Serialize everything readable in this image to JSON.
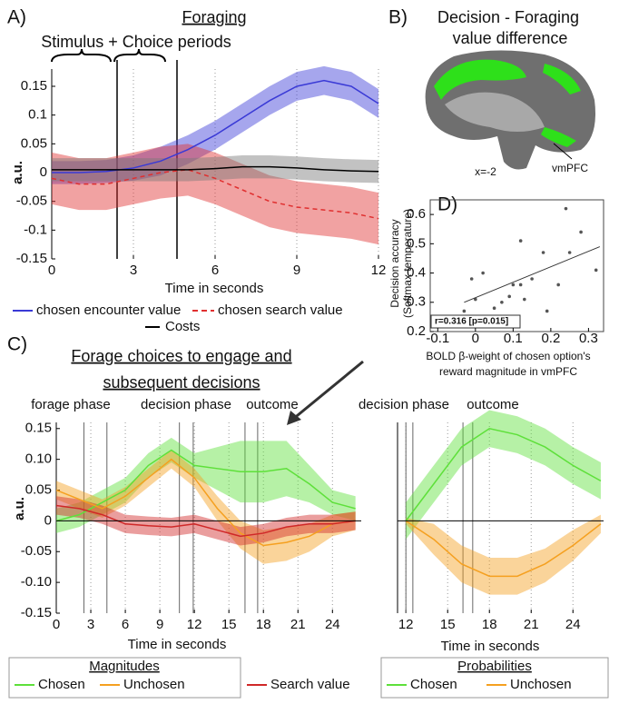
{
  "chart_data": [
    {
      "type": "line",
      "label": "A)",
      "title": "Foraging",
      "annotation": "Stimulus + Choice periods",
      "xlabel": "Time in seconds",
      "ylabel": "a.u.",
      "xlim": [
        0,
        12.5
      ],
      "ylim": [
        -0.15,
        0.18
      ],
      "xticks": [
        0,
        3,
        6,
        9,
        12
      ],
      "yticks": [
        0.15,
        0.1,
        0.05,
        0,
        -0.05,
        -0.1,
        -0.15
      ],
      "grid": "x",
      "vlines": [
        2.4,
        4.6
      ],
      "x": [
        0,
        1,
        2,
        3,
        4,
        5,
        6,
        7,
        8,
        9,
        10,
        11,
        12
      ],
      "series": [
        {
          "name": "chosen encounter value",
          "color": "#3a3ad6",
          "style": "solid",
          "values": [
            0,
            0,
            0.002,
            0.008,
            0.02,
            0.04,
            0.065,
            0.095,
            0.125,
            0.15,
            0.16,
            0.15,
            0.12
          ],
          "upper": [
            0.02,
            0.02,
            0.022,
            0.03,
            0.045,
            0.065,
            0.09,
            0.12,
            0.15,
            0.175,
            0.185,
            0.175,
            0.145
          ],
          "lower": [
            -0.02,
            -0.02,
            -0.018,
            -0.014,
            -0.005,
            0.015,
            0.04,
            0.07,
            0.1,
            0.125,
            0.135,
            0.125,
            0.095
          ]
        },
        {
          "name": "chosen search value",
          "color": "#e03030",
          "style": "dashed",
          "values": [
            -0.01,
            -0.02,
            -0.02,
            -0.01,
            0,
            0.005,
            -0.01,
            -0.03,
            -0.05,
            -0.06,
            -0.065,
            -0.07,
            -0.08
          ],
          "upper": [
            0.035,
            0.025,
            0.025,
            0.035,
            0.045,
            0.05,
            0.035,
            0.015,
            -0.005,
            -0.015,
            -0.02,
            -0.025,
            -0.035
          ],
          "lower": [
            -0.055,
            -0.065,
            -0.065,
            -0.055,
            -0.045,
            -0.04,
            -0.055,
            -0.075,
            -0.095,
            -0.105,
            -0.11,
            -0.115,
            -0.125
          ]
        },
        {
          "name": "Costs",
          "color": "#000000",
          "style": "solid",
          "values": [
            0.005,
            0.005,
            0.005,
            0.005,
            0.005,
            0.005,
            0.007,
            0.01,
            0.01,
            0.008,
            0.005,
            0.003,
            0.002
          ],
          "upper": [
            0.025,
            0.025,
            0.025,
            0.025,
            0.025,
            0.025,
            0.027,
            0.03,
            0.03,
            0.028,
            0.025,
            0.023,
            0.022
          ],
          "lower": [
            -0.015,
            -0.015,
            -0.015,
            -0.015,
            -0.015,
            -0.015,
            -0.013,
            -0.01,
            -0.01,
            -0.012,
            -0.015,
            -0.017,
            -0.018
          ]
        }
      ]
    },
    {
      "type": "scatter",
      "label": "D)",
      "xlabel": [
        "BOLD β-weight of chosen option's",
        "reward magnitude in vmPFC"
      ],
      "ylabel": [
        "Decision accuracy",
        "(Softmax temperature)"
      ],
      "annotation": "r=0.316  [p=0.015]",
      "xlim": [
        -0.12,
        0.34
      ],
      "ylim": [
        0.2,
        0.65
      ],
      "xticks": [
        -0.1,
        0,
        0.1,
        0.2,
        0.3
      ],
      "yticks": [
        0.6,
        0.5,
        0.4,
        0.3,
        0.2
      ],
      "color": "#555555",
      "x": [
        -0.03,
        -0.01,
        0,
        0.02,
        0.05,
        0.07,
        0.09,
        0.1,
        0.12,
        0.13,
        0.12,
        0.15,
        0.18,
        0.19,
        0.22,
        0.24,
        0.25,
        0.28,
        0.32
      ],
      "values": [
        0.27,
        0.38,
        0.31,
        0.4,
        0.28,
        0.3,
        0.32,
        0.36,
        0.36,
        0.31,
        0.51,
        0.38,
        0.47,
        0.27,
        0.36,
        0.62,
        0.47,
        0.54,
        0.41
      ],
      "fit": {
        "x": [
          -0.03,
          0.33
        ],
        "y": [
          0.3,
          0.49
        ]
      }
    },
    {
      "type": "line",
      "label": "C)",
      "title": [
        "Forage choices to engage and",
        "subsequent decisions"
      ],
      "annotations": [
        "forage phase",
        "decision phase",
        "outcome"
      ],
      "xlabel": "Time in seconds",
      "ylabel": "a.u.",
      "legend_title": "Magnitudes",
      "xlim": [
        0,
        26.5
      ],
      "ylim": [
        -0.15,
        0.16
      ],
      "xticks": [
        0,
        3,
        6,
        9,
        12,
        15,
        18,
        21,
        24
      ],
      "yticks": [
        0.15,
        {
          "value": 0.1,
          "label": "0.10"
        },
        0.05,
        0,
        -0.05,
        {
          "value": -0.1,
          "label": "-0.10"
        },
        -0.15
      ],
      "grid": "x",
      "zero_line": true,
      "vlines": [
        2.4,
        4.4,
        10.7,
        11.9,
        16.4,
        17.5
      ],
      "x": [
        0,
        2,
        4,
        6,
        8,
        10,
        12,
        14,
        16,
        18,
        20,
        22,
        24,
        26
      ],
      "series": [
        {
          "name": "Chosen",
          "color": "#5ee03a",
          "style": "solid",
          "values": [
            0,
            0.01,
            0.03,
            0.05,
            0.09,
            0.115,
            0.09,
            0.085,
            0.08,
            0.08,
            0.085,
            0.06,
            0.03,
            0.02
          ],
          "upper": [
            0.02,
            0.03,
            0.05,
            0.07,
            0.11,
            0.135,
            0.11,
            0.12,
            0.13,
            0.13,
            0.13,
            0.09,
            0.05,
            0.04
          ],
          "lower": [
            -0.02,
            -0.01,
            0.01,
            0.03,
            0.07,
            0.095,
            0.07,
            0.05,
            0.03,
            0.03,
            0.04,
            0.03,
            0.01,
            0
          ]
        },
        {
          "name": "Unchosen",
          "color": "#f5a020",
          "style": "solid",
          "values": [
            0.05,
            0.035,
            0.02,
            0.04,
            0.07,
            0.1,
            0.07,
            0.02,
            -0.02,
            -0.04,
            -0.035,
            -0.025,
            -0.005,
            0
          ],
          "upper": [
            0.065,
            0.05,
            0.035,
            0.055,
            0.085,
            0.115,
            0.085,
            0.04,
            0,
            -0.015,
            -0.01,
            -0.005,
            0.01,
            0.015
          ],
          "lower": [
            0.035,
            0.02,
            0.005,
            0.025,
            0.055,
            0.085,
            0.055,
            0,
            -0.045,
            -0.07,
            -0.065,
            -0.05,
            -0.025,
            -0.015
          ]
        },
        {
          "name": "Search value",
          "color": "#d02828",
          "style": "solid",
          "values": [
            0.025,
            0.02,
            0.01,
            -0.005,
            -0.008,
            -0.01,
            -0.005,
            -0.015,
            -0.025,
            -0.02,
            -0.01,
            -0.005,
            -0.005,
            0
          ],
          "upper": [
            0.04,
            0.035,
            0.025,
            0.01,
            0.007,
            0.005,
            0.01,
            0,
            -0.01,
            -0.005,
            0.005,
            0.01,
            0.01,
            0.015
          ],
          "lower": [
            0.01,
            0.005,
            -0.005,
            -0.02,
            -0.023,
            -0.025,
            -0.02,
            -0.03,
            -0.04,
            -0.035,
            -0.025,
            -0.02,
            -0.02,
            -0.015
          ]
        }
      ]
    },
    {
      "type": "line",
      "annotations": [
        "decision phase",
        "outcome"
      ],
      "xlabel": "Time in seconds",
      "legend_title": "Probabilities",
      "xlim": [
        11.4,
        26.2
      ],
      "ylim": [
        -0.15,
        0.16
      ],
      "xticks": [
        12,
        15,
        18,
        21,
        24
      ],
      "grid": "x",
      "zero_line": true,
      "vlines": [
        12,
        12.5,
        16.1,
        16.8
      ],
      "x": [
        12,
        14,
        16,
        18,
        20,
        22,
        24,
        26
      ],
      "series": [
        {
          "name": "Chosen",
          "color": "#5ee03a",
          "style": "solid",
          "values": [
            0,
            0.06,
            0.12,
            0.15,
            0.14,
            0.12,
            0.09,
            0.065
          ],
          "upper": [
            0.03,
            0.09,
            0.15,
            0.18,
            0.17,
            0.15,
            0.12,
            0.095
          ],
          "lower": [
            -0.03,
            0.03,
            0.09,
            0.12,
            0.11,
            0.09,
            0.06,
            0.035
          ]
        },
        {
          "name": "Unchosen",
          "color": "#f5a020",
          "style": "solid",
          "values": [
            0,
            -0.03,
            -0.07,
            -0.09,
            -0.09,
            -0.07,
            -0.04,
            -0.005
          ],
          "upper": [
            0.005,
            -0.005,
            -0.04,
            -0.06,
            -0.06,
            -0.045,
            -0.015,
            0.01
          ],
          "lower": [
            -0.005,
            -0.055,
            -0.1,
            -0.12,
            -0.12,
            -0.1,
            -0.065,
            -0.02
          ]
        }
      ]
    }
  ],
  "panel_b": {
    "label": "B)",
    "title": [
      "Decision - Foraging",
      "value difference"
    ],
    "slice": "x=-2",
    "region": "vmPFC"
  }
}
